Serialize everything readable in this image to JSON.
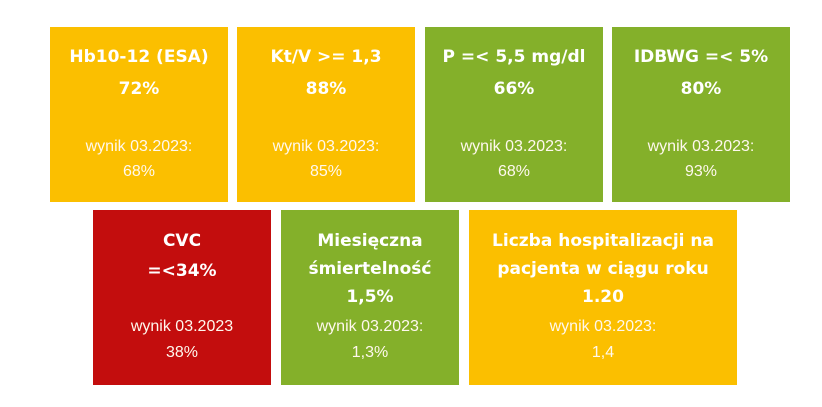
{
  "tiles": [
    {
      "title_lines": [
        "Hb10-12 (ESA)",
        "72%"
      ],
      "result_lines": [
        "wynik 03.2023:",
        "68%"
      ],
      "color": "#fbbf00"
    },
    {
      "title_lines": [
        "Kt/V >= 1,3",
        "88%"
      ],
      "result_lines": [
        "wynik 03.2023:",
        "85%"
      ],
      "color": "#fbbf00"
    },
    {
      "title_lines": [
        "P =< 5,5 mg/dl",
        "66%"
      ],
      "result_lines": [
        "wynik 03.2023:",
        "68%"
      ],
      "color": "#84b02a"
    },
    {
      "title_lines": [
        "IDBWG =< 5%",
        "80%"
      ],
      "result_lines": [
        "wynik 03.2023:",
        "93%"
      ],
      "color": "#84b02a"
    },
    {
      "title_lines": [
        "CVC",
        "=<34%"
      ],
      "result_lines": [
        "wynik 03.2023",
        "38%"
      ],
      "color": "#c30d0d"
    },
    {
      "title_lines": [
        "Miesięczna",
        "śmiertelność",
        "1,5%"
      ],
      "result_lines": [
        "wynik 03.2023:",
        "1,3%"
      ],
      "color": "#84b02a"
    },
    {
      "title_lines": [
        "Liczba hospitalizacji na",
        "pacjenta w ciągu roku",
        "1.20"
      ],
      "result_lines": [
        "wynik 03.2023:",
        "1,4"
      ],
      "color": "#fbbf00"
    }
  ]
}
